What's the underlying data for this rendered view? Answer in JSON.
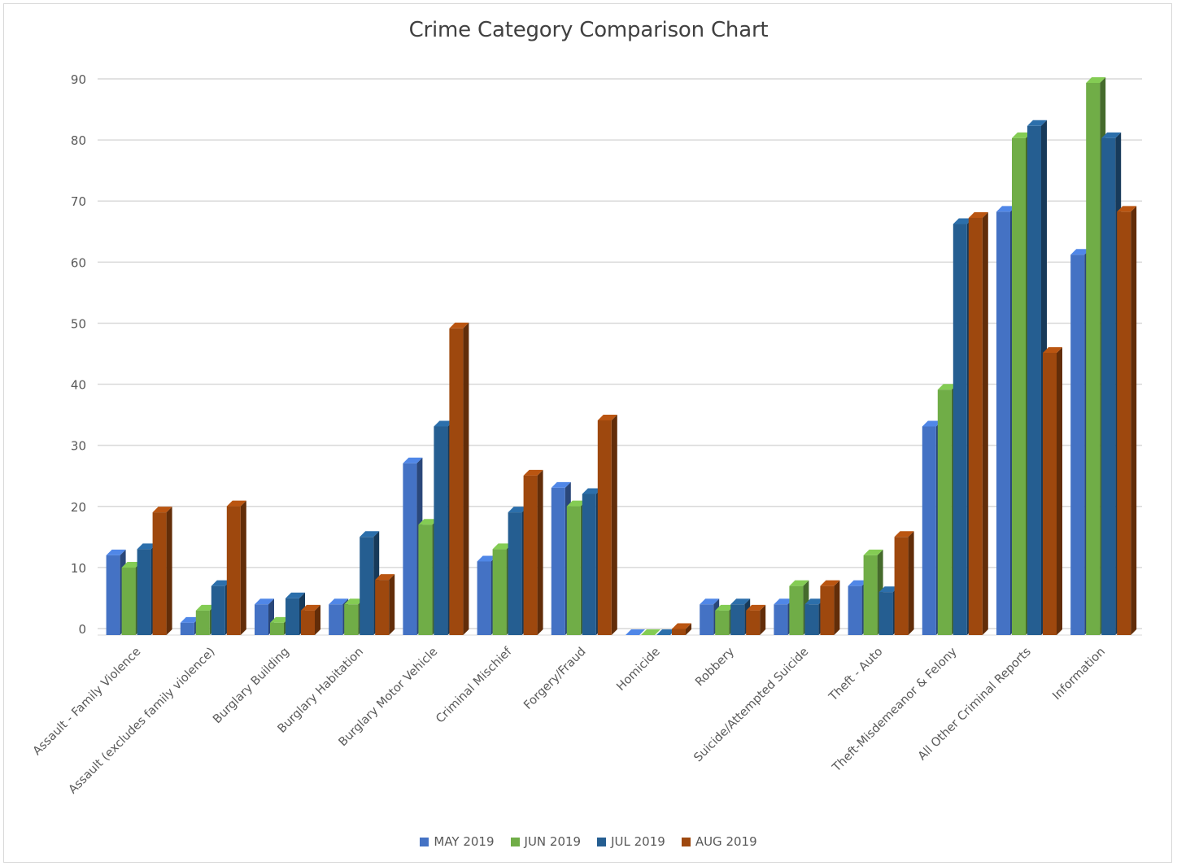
{
  "chart_data": {
    "type": "bar",
    "title": "Crime Category Comparison Chart",
    "xlabel": "",
    "ylabel": "",
    "ylim": [
      0,
      90
    ],
    "yticks": [
      0,
      10,
      20,
      30,
      40,
      50,
      60,
      70,
      80,
      90
    ],
    "grid": true,
    "legend_position": "bottom",
    "categories": [
      "Assault - Family Violence",
      "Assault (excludes family violence)",
      "Burglary Building",
      "Burglary Habitation",
      "Burglary Motor Vehicle",
      "Criminal Mischief",
      "Forgery/Fraud",
      "Homicide",
      "Robbery",
      "Suicide/Attempted Suicide",
      "Theft - Auto",
      "Theft-Misdemeanor &  Felony",
      "All Other Criminal Reports",
      "Information"
    ],
    "series": [
      {
        "name": "MAY 2019",
        "color": "#4472c4",
        "values": [
          13,
          2,
          5,
          5,
          28,
          12,
          24,
          0,
          5,
          5,
          8,
          34,
          69,
          62
        ]
      },
      {
        "name": "JUN 2019",
        "color": "#70ad47",
        "values": [
          11,
          4,
          2,
          5,
          18,
          14,
          21,
          0,
          4,
          8,
          13,
          40,
          81,
          90
        ]
      },
      {
        "name": "JUL 2019",
        "color": "#255e91",
        "values": [
          14,
          8,
          6,
          16,
          34,
          20,
          23,
          0,
          5,
          5,
          7,
          67,
          83,
          81
        ]
      },
      {
        "name": "AUG 2019",
        "color": "#9e480e",
        "values": [
          20,
          21,
          4,
          9,
          50,
          26,
          35,
          1,
          4,
          8,
          16,
          68,
          46,
          69
        ]
      }
    ]
  }
}
